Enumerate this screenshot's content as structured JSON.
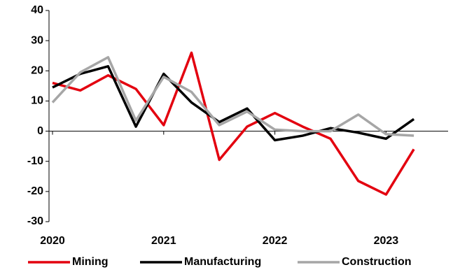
{
  "chart_data": {
    "type": "line",
    "categories": [
      "2020",
      null,
      null,
      null,
      "2021",
      null,
      null,
      null,
      "2022",
      null,
      null,
      null,
      "2023",
      null
    ],
    "series": [
      {
        "name": "Mining",
        "color": "#e3000f",
        "values": [
          16,
          13.5,
          18.5,
          14,
          2,
          26,
          -9.5,
          1.5,
          6,
          1.5,
          -2.5,
          -16.5,
          -21,
          -6
        ]
      },
      {
        "name": "Manufacturing",
        "color": "#000000",
        "values": [
          14.5,
          19,
          21.5,
          1.5,
          19,
          9.5,
          3,
          7.5,
          -3,
          -1.5,
          1,
          -0.5,
          -2.5,
          4
        ]
      },
      {
        "name": "Construction",
        "color": "#a6a6a6",
        "values": [
          9.5,
          19.5,
          24.5,
          3.5,
          18,
          13,
          2,
          6.5,
          0.5,
          0,
          0,
          5.5,
          -1,
          -1.5
        ]
      }
    ],
    "ylim": [
      -30,
      40
    ],
    "yticks": [
      -30,
      -20,
      -10,
      0,
      10,
      20,
      30,
      40
    ],
    "legend": "bottom"
  }
}
